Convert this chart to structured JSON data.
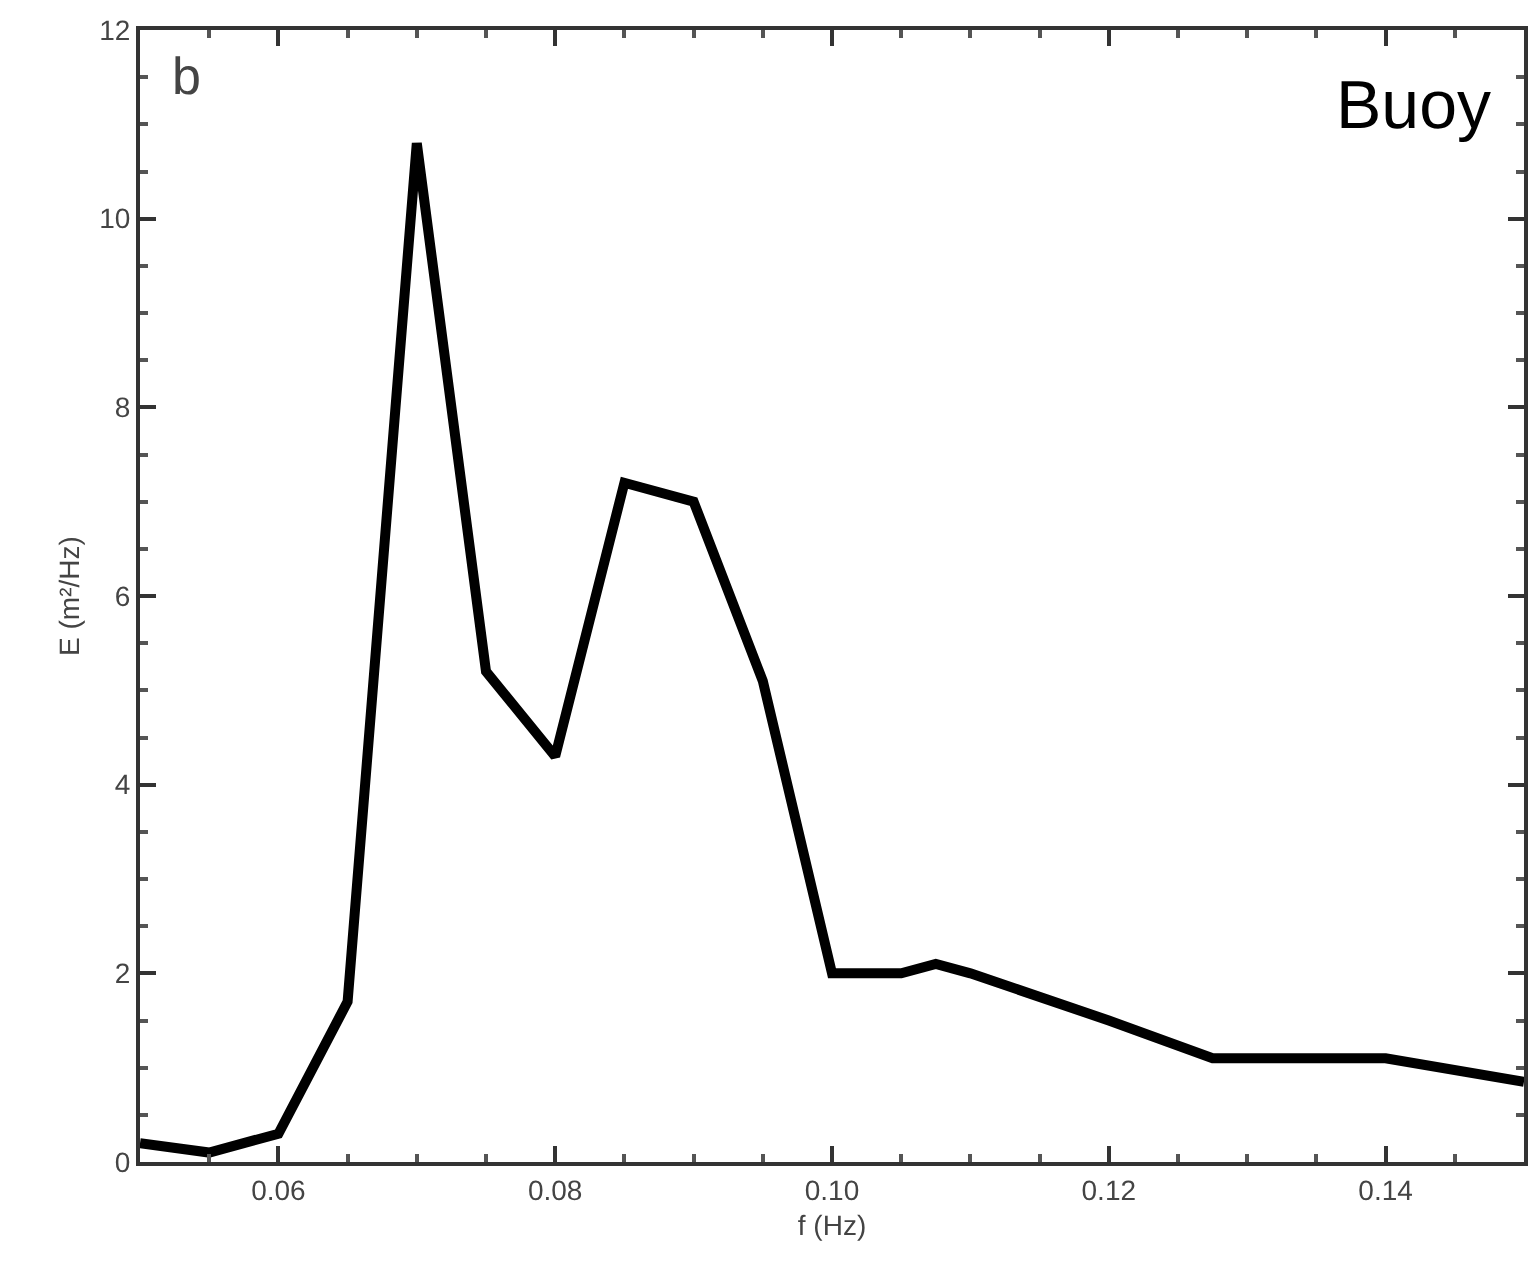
{
  "chart_data": {
    "type": "line",
    "xlabel": "f (Hz)",
    "ylabel": "E (m²/Hz)",
    "annotations": [
      "b",
      "Buoy"
    ],
    "x": [
      0.05,
      0.055,
      0.06,
      0.065,
      0.07,
      0.075,
      0.08,
      0.085,
      0.09,
      0.095,
      0.1,
      0.105,
      0.1075,
      0.11,
      0.12,
      0.1275,
      0.13,
      0.135,
      0.14,
      0.15
    ],
    "series": [
      {
        "color": "#000000",
        "values": [
          0.2,
          0.1,
          0.3,
          1.7,
          10.8,
          5.2,
          4.3,
          7.2,
          7.0,
          5.1,
          2.0,
          2.0,
          2.1,
          2.0,
          1.5,
          1.1,
          1.1,
          1.1,
          1.1,
          0.85
        ]
      }
    ],
    "xlim": [
      0.05,
      0.15
    ],
    "ylim": [
      0,
      12
    ],
    "xticks": [
      {
        "value": 0.06,
        "label": "0.06"
      },
      {
        "value": 0.08,
        "label": "0.08"
      },
      {
        "value": 0.1,
        "label": "0.10"
      },
      {
        "value": 0.12,
        "label": "0.12"
      },
      {
        "value": 0.14,
        "label": "0.14"
      }
    ],
    "yticks": [
      0,
      2,
      4,
      6,
      8,
      10,
      12
    ],
    "grid": false,
    "marker": "none",
    "line_style": "solid"
  }
}
